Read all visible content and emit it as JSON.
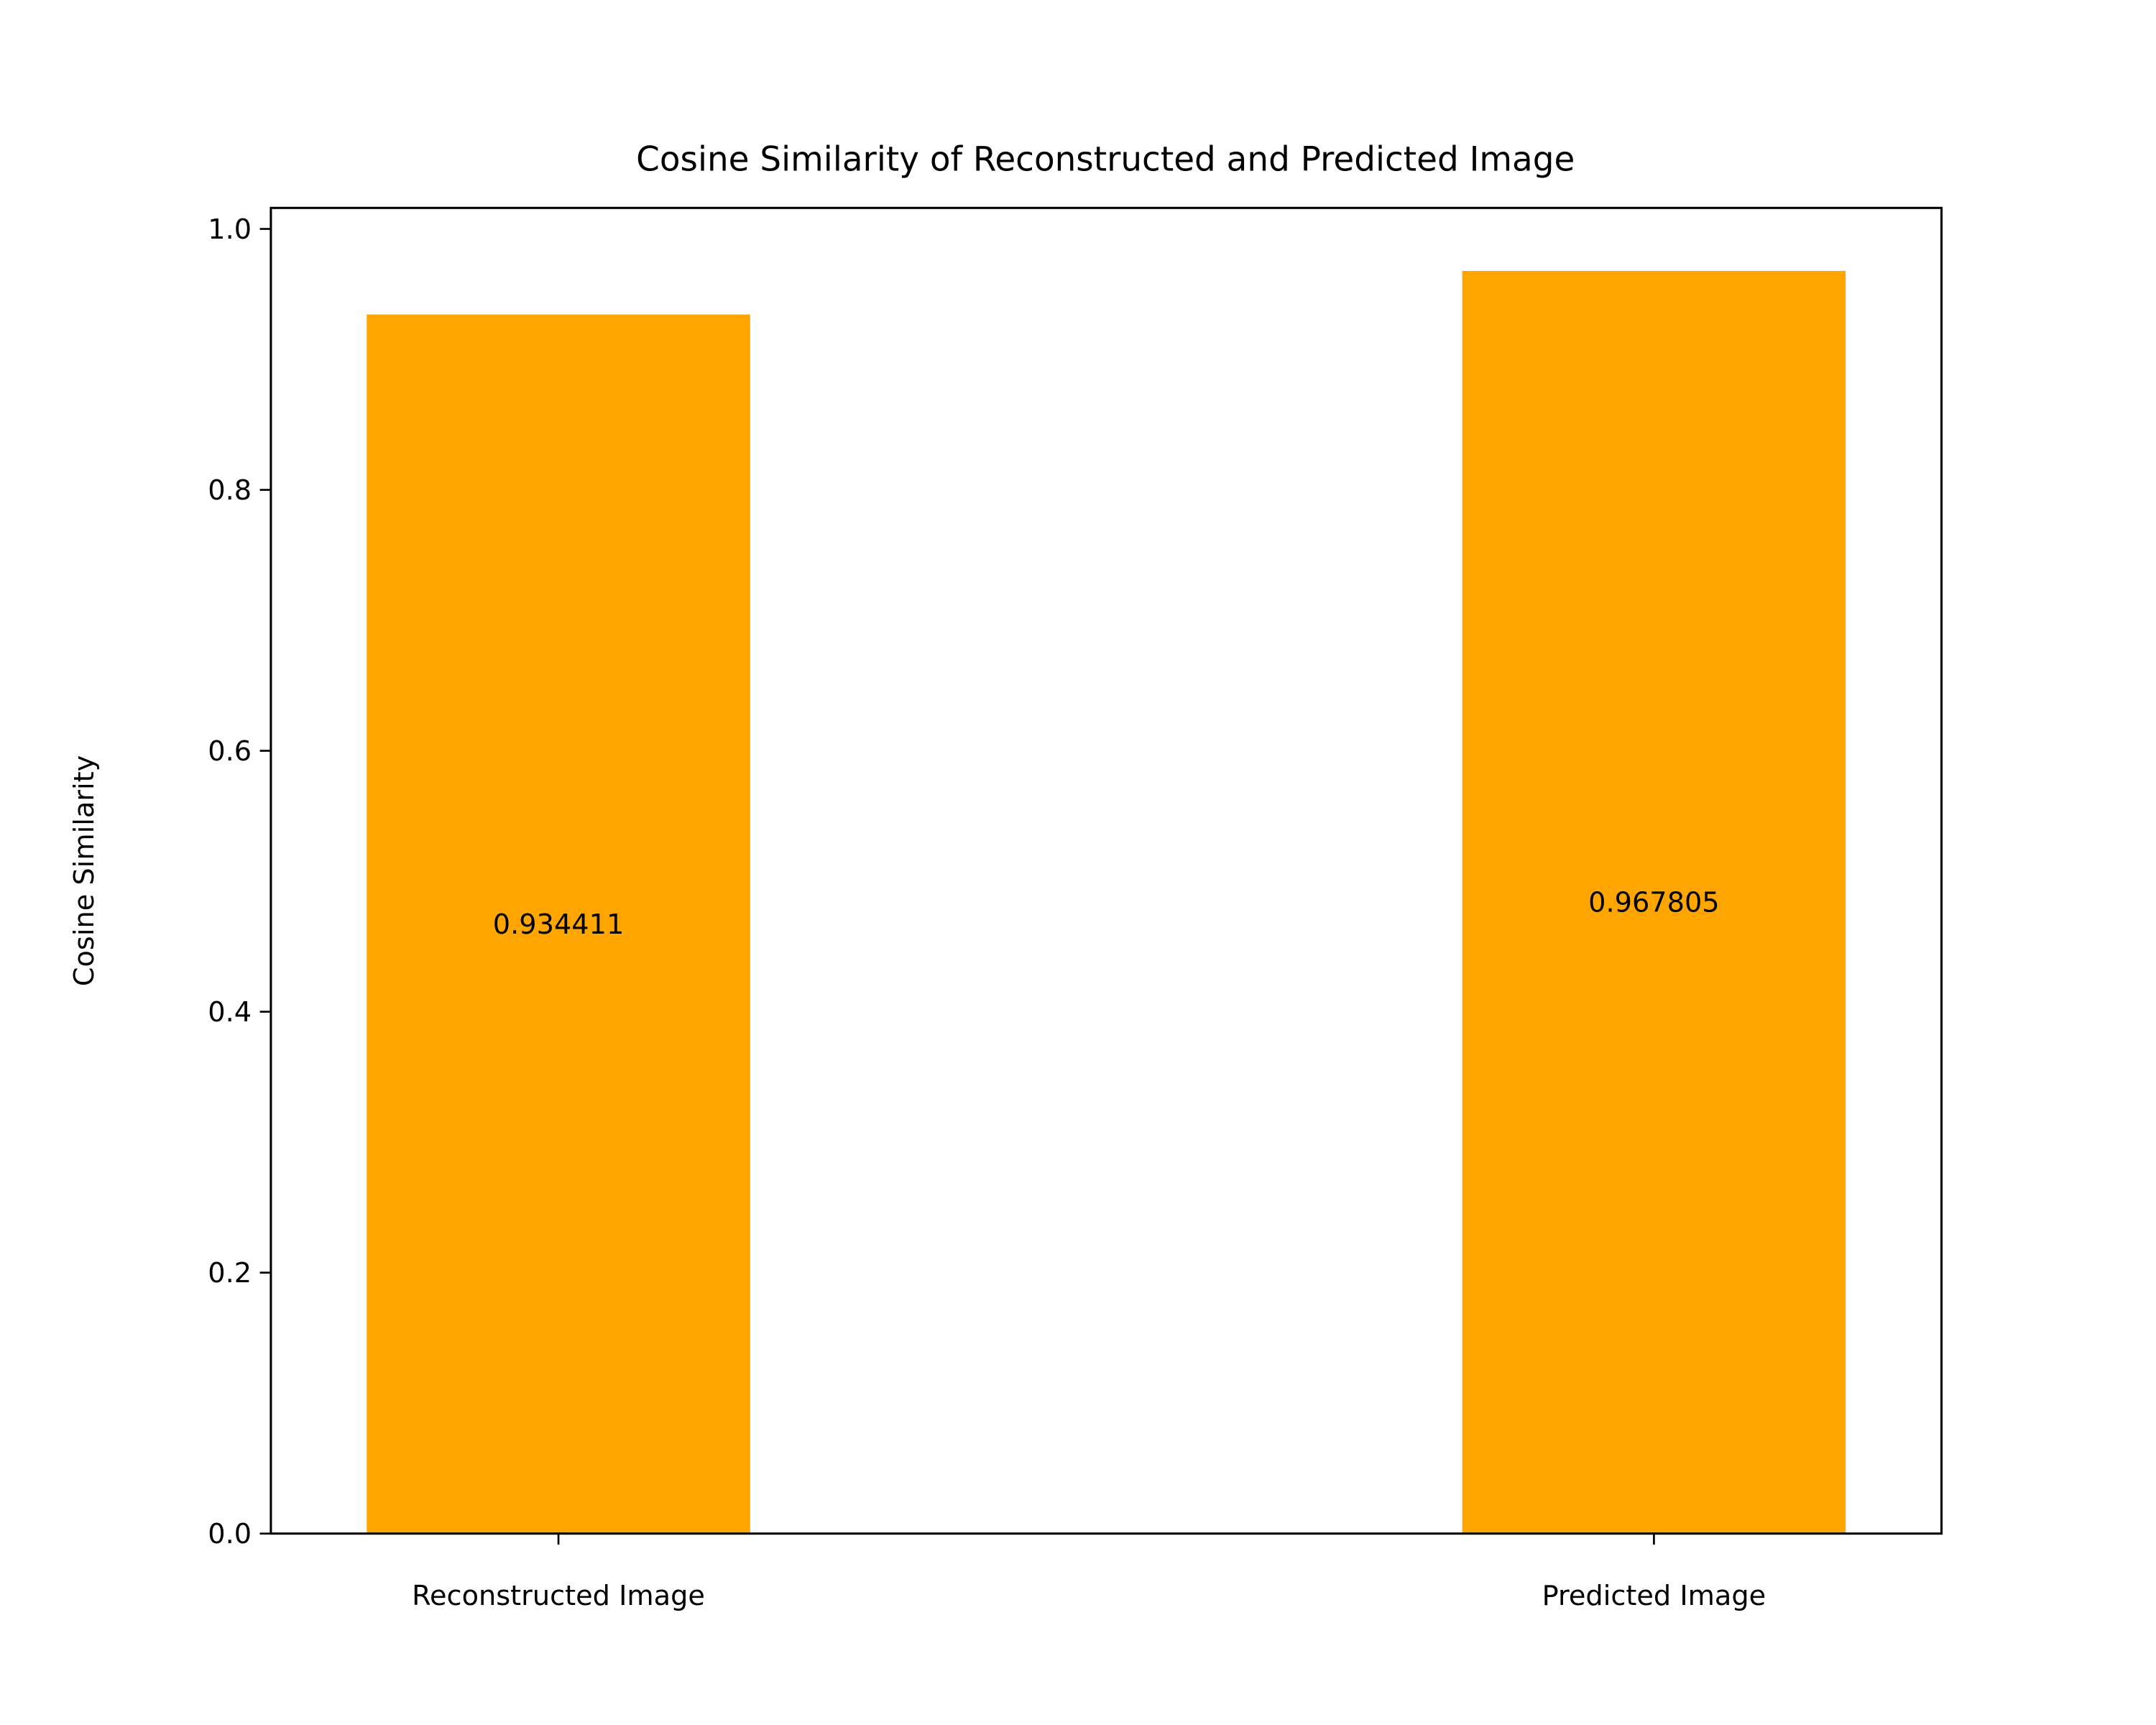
{
  "chart_data": {
    "type": "bar",
    "title": "Cosine Similarity of Reconstructed and Predicted Image",
    "xlabel": "",
    "ylabel": "Cosine Similarity",
    "categories": [
      "Reconstructed Image",
      "Predicted Image"
    ],
    "values": [
      0.934411,
      0.967805
    ],
    "value_labels": [
      "0.934411",
      "0.967805"
    ],
    "bar_color": "#FFA500",
    "ylim": [
      0,
      1.0161
    ],
    "yticks": [
      0.0,
      0.2,
      0.4,
      0.6,
      0.8,
      1.0
    ],
    "ytick_labels": [
      "0.0",
      "0.2",
      "0.4",
      "0.6",
      "0.8",
      "1.0"
    ],
    "grid": false,
    "legend": "none"
  }
}
